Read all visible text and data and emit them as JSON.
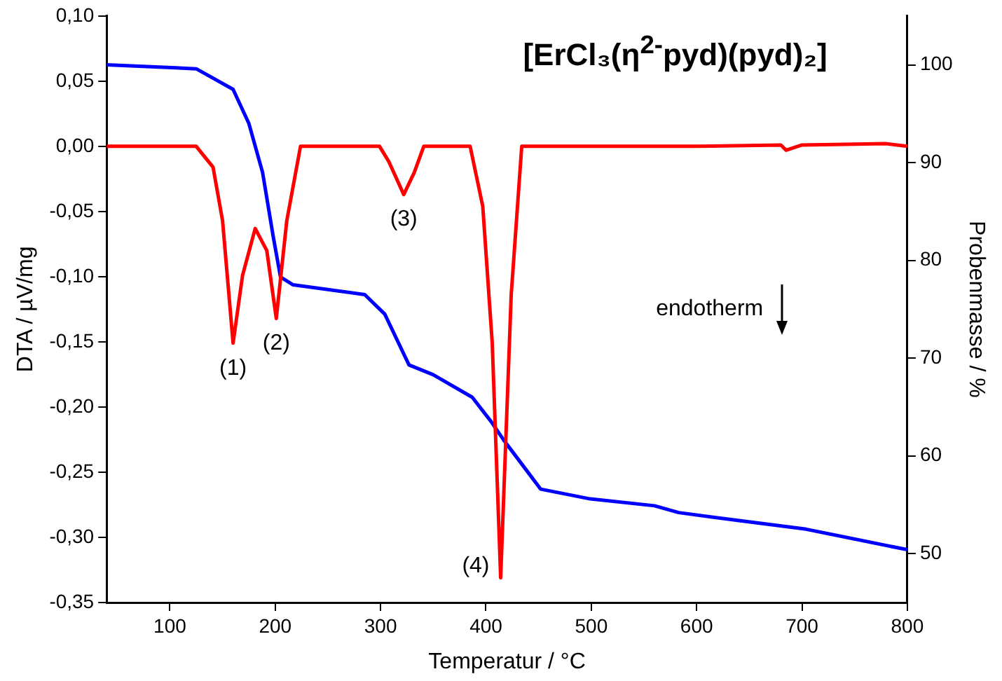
{
  "chart_data": {
    "type": "line",
    "title": "[ErCl₃(η$^{2-}$pyd)(pyd)₂]",
    "xlabel": "Temperatur / °C",
    "ylabel": "DTA / µV/mg",
    "y2label": "Probenmasse / %",
    "xlim": [
      40,
      800
    ],
    "xticks": [
      100,
      200,
      300,
      400,
      500,
      600,
      700,
      800
    ],
    "ylim": [
      -0.35,
      0.1
    ],
    "yticks": [
      {
        "value": -0.35,
        "label": "-0,35"
      },
      {
        "value": -0.3,
        "label": "-0,30"
      },
      {
        "value": -0.25,
        "label": "-0,25"
      },
      {
        "value": -0.2,
        "label": "-0,20"
      },
      {
        "value": -0.15,
        "label": "-0,15"
      },
      {
        "value": -0.1,
        "label": "-0,10"
      },
      {
        "value": -0.05,
        "label": "-0,05"
      },
      {
        "value": 0,
        "label": "0,00"
      },
      {
        "value": 0.05,
        "label": "0,05"
      },
      {
        "value": 0.1,
        "label": "0,10"
      }
    ],
    "y2lim": [
      45,
      105
    ],
    "y2ticks": [
      50,
      60,
      70,
      80,
      90,
      100
    ],
    "grid": false,
    "legend": false,
    "series": [
      {
        "color": "#ff0000",
        "axis": "y",
        "x": [
          40,
          125,
          141,
          150,
          160,
          169,
          181,
          192,
          201,
          211,
          224,
          299,
          308,
          322,
          332,
          341,
          385,
          397,
          406,
          414,
          424,
          434,
          500,
          600,
          680,
          685,
          700,
          780,
          800
        ],
        "values": [
          0,
          0,
          -0.016,
          -0.057,
          -0.151,
          -0.099,
          -0.063,
          -0.08,
          -0.132,
          -0.057,
          0,
          0,
          -0.012,
          -0.037,
          -0.02,
          0,
          0,
          -0.046,
          -0.151,
          -0.331,
          -0.114,
          0,
          0,
          0,
          0.001,
          -0.003,
          0.001,
          0.002,
          0
        ]
      },
      {
        "color": "#0000ff",
        "axis": "y2",
        "x": [
          40,
          125,
          160,
          175,
          188,
          198,
          205,
          217,
          285,
          304,
          327,
          350,
          387,
          405,
          417,
          452,
          499,
          560,
          583,
          639,
          704,
          800
        ],
        "values": [
          100,
          99.6,
          97.5,
          94,
          89,
          82.5,
          78.3,
          77.5,
          76.5,
          74.5,
          69.3,
          68.3,
          66,
          63.5,
          61.6,
          56.6,
          55.6,
          54.9,
          54.2,
          53.4,
          52.5,
          50.4
        ]
      }
    ],
    "annotations": [
      {
        "text": "(1)",
        "x": 160,
        "y": -0.151
      },
      {
        "text": "(2)",
        "x": 201,
        "y": -0.132
      },
      {
        "text": "(3)",
        "x": 322,
        "y": -0.037
      },
      {
        "text": "(4)",
        "x": 414,
        "y": -0.331
      },
      "endotherm"
    ]
  }
}
